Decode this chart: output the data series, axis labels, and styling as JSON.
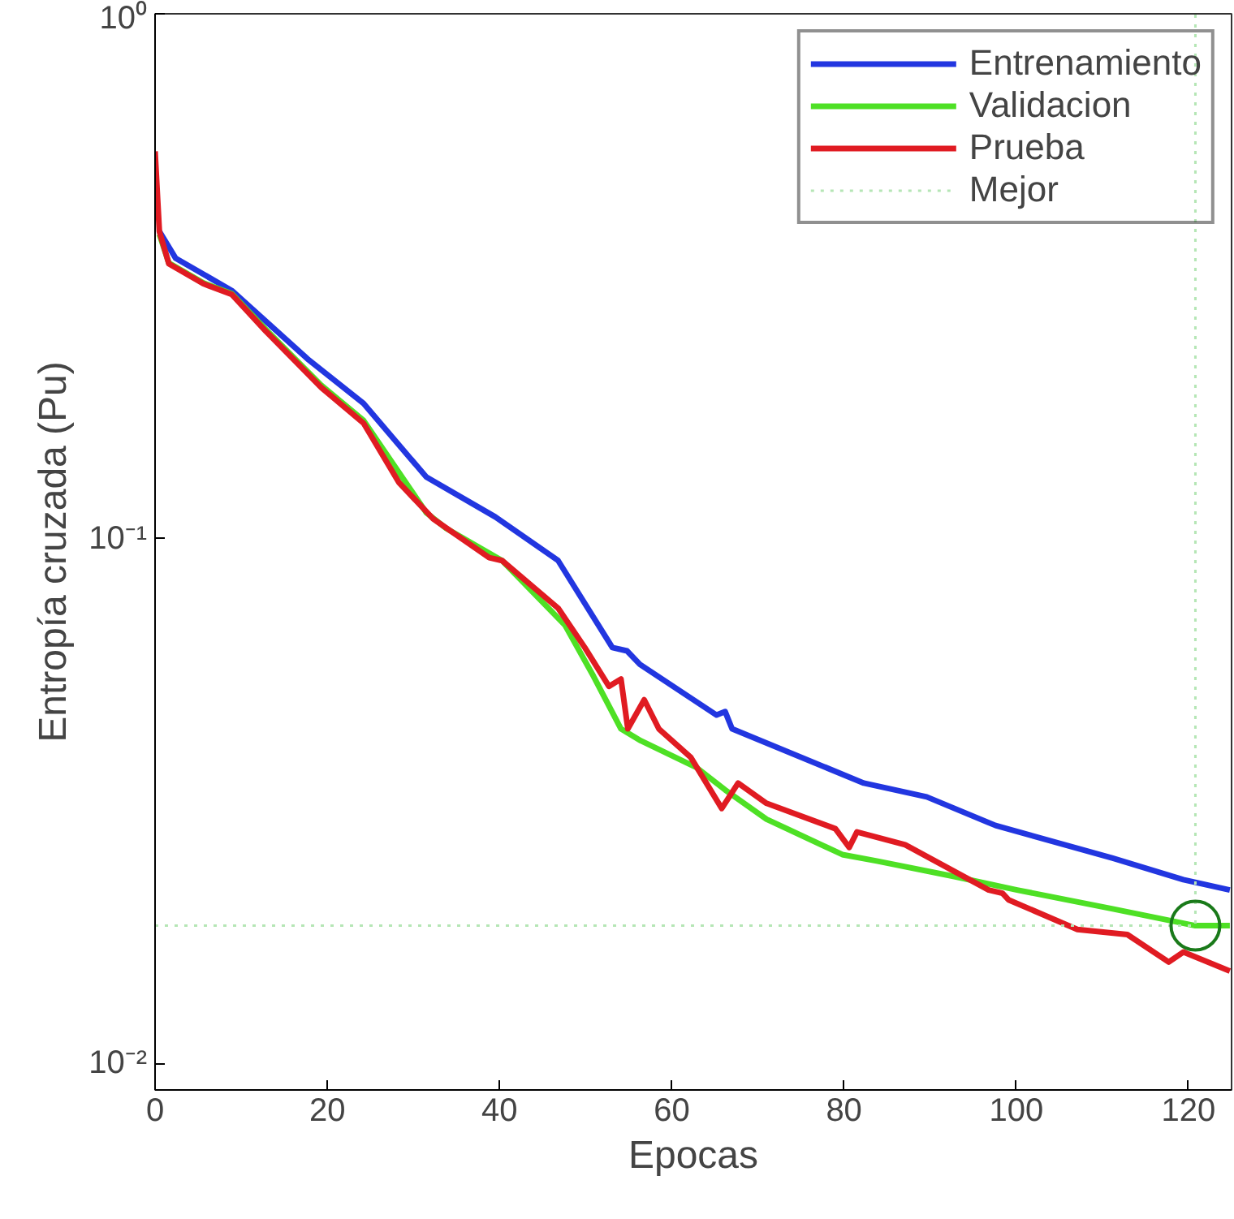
{
  "chart_data": {
    "type": "line",
    "xlabel": "Epocas",
    "ylabel": "Entropía cruzada (Pu)",
    "log": "y",
    "xlim": [
      0,
      125
    ],
    "xticks": [
      0,
      20,
      40,
      60,
      80,
      100,
      120
    ],
    "ylim": [
      0.0089,
      1
    ],
    "yticks": [
      {
        "value": 0.01,
        "label": "10⁻²"
      },
      {
        "value": 0.1,
        "label": "10⁻¹"
      },
      {
        "value": 1,
        "label": "10⁰"
      }
    ],
    "grid": false,
    "legend": "top right",
    "line_style": "solid",
    "marker": "none",
    "series": [
      {
        "name": "Entrenamiento",
        "color": "#2236e0",
        "x": [
          0.5,
          2.4,
          8.9,
          17.7,
          24.2,
          31.5,
          39.5,
          46.8,
          53.1,
          54.8,
          56.3,
          65.2,
          66.2,
          67.0,
          82.3,
          89.6,
          97.6,
          111.2,
          119.4,
          124.8
        ],
        "values": [
          0.385,
          0.342,
          0.297,
          0.22,
          0.181,
          0.131,
          0.11,
          0.0908,
          0.062,
          0.0611,
          0.0576,
          0.0461,
          0.0468,
          0.0434,
          0.0342,
          0.0322,
          0.0284,
          0.0246,
          0.0224,
          0.0214
        ]
      },
      {
        "name": "Validacion",
        "color": "#4ee025",
        "x": [
          0.5,
          1.6,
          5.6,
          8.9,
          12.9,
          19.3,
          24.2,
          31.5,
          33.8,
          40.3,
          47.6,
          50.9,
          54.1,
          56.4,
          62.9,
          66.2,
          71.0,
          79.8,
          83.8,
          92.8,
          100.1,
          111.2,
          120.8,
          124.8
        ],
        "values": [
          0.38,
          0.335,
          0.307,
          0.293,
          0.25,
          0.196,
          0.168,
          0.112,
          0.1046,
          0.0908,
          0.0684,
          0.0547,
          0.0434,
          0.0412,
          0.0366,
          0.0332,
          0.0292,
          0.025,
          0.0243,
          0.0227,
          0.0214,
          0.0197,
          0.0183,
          0.0183
        ]
      },
      {
        "name": "Prueba",
        "color": "#e01b22",
        "x": [
          0,
          0.5,
          1.6,
          5.6,
          8.9,
          12.9,
          19.3,
          24.2,
          28.3,
          32.3,
          38.8,
          40.3,
          46.8,
          49.9,
          52.7,
          54.1,
          54.9,
          56.8,
          58.5,
          62.2,
          65.8,
          67.7,
          71.0,
          79.0,
          80.6,
          81.5,
          87.1,
          96.8,
          98.4,
          99.1,
          107.1,
          112.9,
          117.7,
          119.4,
          124.8
        ],
        "values": [
          0.547,
          0.385,
          0.334,
          0.306,
          0.292,
          0.248,
          0.194,
          0.166,
          0.128,
          0.109,
          0.092,
          0.0908,
          0.0737,
          0.062,
          0.0523,
          0.054,
          0.0434,
          0.0493,
          0.0434,
          0.0383,
          0.0306,
          0.0342,
          0.0313,
          0.028,
          0.0258,
          0.0276,
          0.0261,
          0.0214,
          0.0211,
          0.0205,
          0.018,
          0.0176,
          0.0156,
          0.0163,
          0.015
        ]
      },
      {
        "name": "Mejor",
        "color": "#b5e6b5",
        "line_style": "dotted",
        "x": [
          0,
          120.8,
          120.8
        ],
        "values": [
          0.0183,
          0.0183,
          1
        ]
      },
      {
        "type": "scatter",
        "marker": "circle",
        "color": "#1a7a1a",
        "x": [
          120.8
        ],
        "values": [
          0.0183
        ]
      }
    ]
  }
}
